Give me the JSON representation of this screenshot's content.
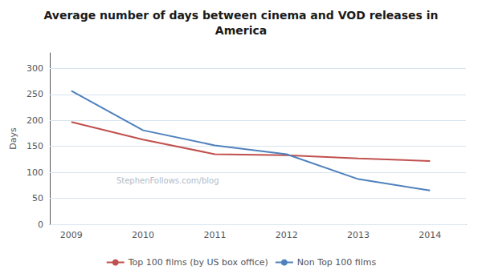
{
  "chart_data": {
    "type": "line",
    "title": "Average number of days between cinema and VOD releases in\nAmerica",
    "y_label": "Days",
    "x": [
      2009,
      2010,
      2011,
      2012,
      2013,
      2014
    ],
    "series": [
      {
        "name": "Top 100 films (by US box office)",
        "color": "#c0504d",
        "values": [
          197,
          163,
          135,
          133,
          127,
          122
        ]
      },
      {
        "name": "Non Top 100 films",
        "color": "#4f81bd",
        "values": [
          257,
          181,
          152,
          135,
          87,
          65
        ]
      }
    ],
    "xlim": [
      2008.7,
      2014.5
    ],
    "xticks": [
      2009,
      2010,
      2011,
      2012,
      2013,
      2014
    ],
    "ylim": [
      0,
      330
    ],
    "yticks": [
      0,
      50,
      100,
      150,
      200,
      250,
      300
    ],
    "grid": "y",
    "legend": "bottom",
    "annotations": [
      "StephenFollows.com/blog"
    ]
  }
}
